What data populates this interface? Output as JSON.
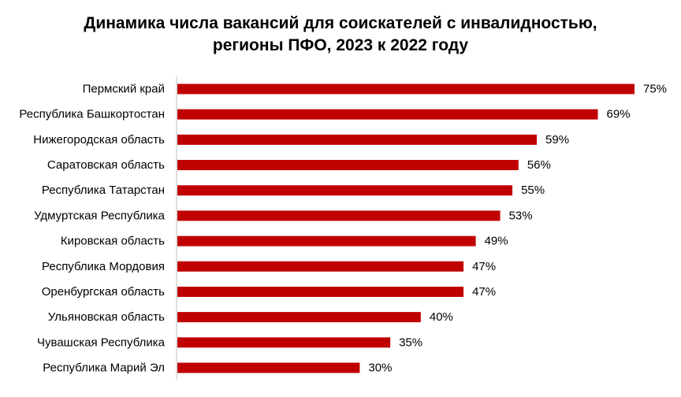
{
  "chart_data": {
    "type": "bar",
    "orientation": "horizontal",
    "title_lines": [
      "Динамика числа вакансий для соискателей с инвалидностью,",
      "регионы ПФО, 2023 к 2022 году"
    ],
    "categories": [
      "Пермский край",
      "Республика Башкортостан",
      "Нижегородская область",
      "Саратовская область",
      "Республика Татарстан",
      "Удмуртская Республика",
      "Кировская область",
      "Республика Мордовия",
      "Оренбургская область",
      "Ульяновская область",
      "Чувашская Республика",
      "Республика Марий Эл"
    ],
    "values": [
      75,
      69,
      59,
      56,
      55,
      53,
      49,
      47,
      47,
      40,
      35,
      30
    ],
    "value_labels": [
      "75%",
      "69%",
      "59%",
      "56%",
      "55%",
      "53%",
      "49%",
      "47%",
      "47%",
      "40%",
      "35%",
      "30%"
    ],
    "unit": "%",
    "xlim": [
      0,
      75
    ],
    "grid": false,
    "legend": "none",
    "colors": {
      "bar": "#c00000",
      "axis": "#bfbfbf",
      "text": "#000000"
    }
  }
}
